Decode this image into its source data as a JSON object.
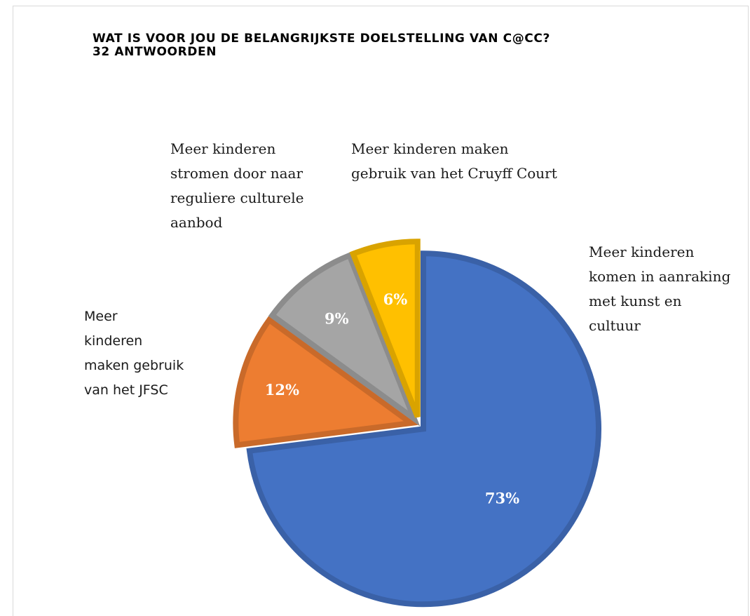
{
  "chart_data": {
    "type": "pie",
    "title": "WAT IS VOOR JOU DE BELANGRIJKSTE DOELSTELLING VAN C@CC?",
    "subtitle": "32 ANTWOORDEN",
    "categories": [
      "Meer kinderen komen in aanraking met kunst en cultuur",
      "Meer kinderen maken gebruik van het JFSC",
      "Meer kinderen stromen door naar reguliere culturele aanbod",
      "Meer kinderen maken gebruik van het Cruyff Court"
    ],
    "values": [
      73,
      12,
      9,
      6
    ],
    "data_labels": [
      "73%",
      "12%",
      "9%",
      "6%"
    ],
    "colors": [
      "#4472C4",
      "#ED7D31",
      "#A5A5A5",
      "#FFC000"
    ],
    "exploded": true
  },
  "labels": {
    "kunst": [
      "Meer kinderen",
      "komen in aanraking",
      "met kunst en",
      "cultuur"
    ],
    "jfsc": [
      "Meer",
      "kinderen",
      "maken gebruik",
      "van het JFSC"
    ],
    "regulier": [
      "Meer kinderen",
      "stromen door naar",
      "reguliere culturele",
      "aanbod"
    ],
    "cruyff": [
      "Meer kinderen maken",
      "gebruik van het Cruyff Court"
    ]
  }
}
